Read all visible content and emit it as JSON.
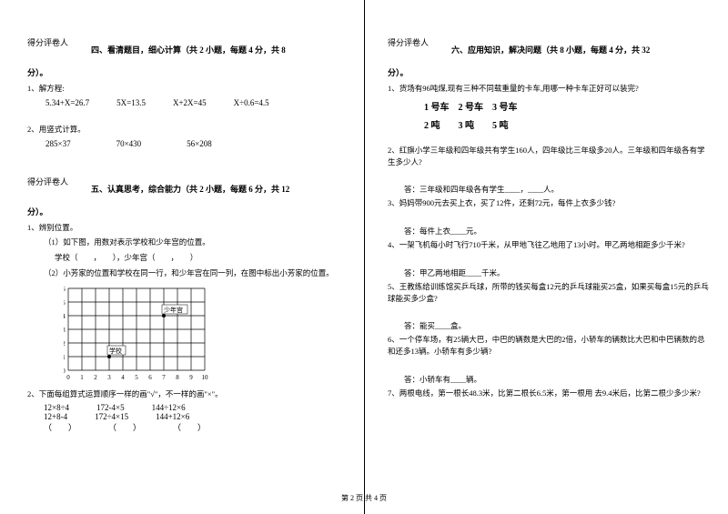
{
  "scoreBox": {
    "scoreLabel": "得分",
    "graderLabel": "评卷人"
  },
  "left": {
    "section4": {
      "title": "四、看清题目，细心计算（共 2 小题，每题 4 分，共 8",
      "pointsLine": "分）。",
      "q1": {
        "num": "1、解方程:",
        "eq1": "5.34+X=26.7",
        "eq2": "5X=13.5",
        "eq3": "X+2X=45",
        "eq4": "X÷0.6=4.5"
      },
      "q2": {
        "num": "2、用竖式计算。",
        "eq1": "285×37",
        "eq2": "70×430",
        "eq3": "56×208"
      }
    },
    "section5": {
      "title": "五、认真思考，综合能力（共 2 小题，每题 6 分，共 12",
      "pointsLine": "分）。",
      "q1": {
        "num": "1、辨别位置。",
        "line1": "（1）如下图，用数对表示学校和少年宫的位置。",
        "line2": "学校（　　，　　），少年宫（　　，　　）",
        "line3": "（2）小芳家的位置和学校在同一行，和少年宫在同一列，在图中标出小芳家的位置。"
      },
      "q2": {
        "num": "2、下面每组算式运算顺序一样的画\"√\"，不一样的画\"×\"。",
        "row1a": "12×8÷4",
        "row1b": "172-4×5",
        "row1c": "144÷12×6",
        "row2a": "12+8-4",
        "row2b": "172÷4×15",
        "row2c": "144+12×6",
        "row3a": "（　　）",
        "row3b": "（　　）",
        "row3c": "（　　）"
      }
    },
    "grid": {
      "cols": 10,
      "rows": 6,
      "cellSize": 15,
      "schoolLabel": "学校",
      "schoolCol": 3,
      "schoolRow": 1,
      "palaceLabel": "少年宫",
      "palaceCol": 7,
      "palaceRow": 4,
      "lineColor": "#000000",
      "fillColor": "#ffffff"
    }
  },
  "right": {
    "section6": {
      "title": "六、应用知识，解决问题（共 8 小题，每题 4 分，共 32",
      "pointsLine": "分）。",
      "q1": {
        "num": "1、货场有96吨煤,现有三种不同载重量的卡车,用哪一种卡车正好可以装完?",
        "trucks": "1 号车　2 号车　3 号车",
        "weights": "2 吨　　3 吨　　5 吨"
      },
      "q2": {
        "num": "2、红旗小学三年级和四年级共有学生160人，四年级比三年级多20人。三年级和四年级各有学生多少人?",
        "ans": "答：三年级和四年级各有学生____，____人。"
      },
      "q3": {
        "num": "3、妈妈带900元去买上衣，买了12件，还剩72元，每件上衣多少钱?",
        "ans": "答：每件上衣____元。"
      },
      "q4": {
        "num": "4、一架飞机每小时飞行710千米，从甲地飞往乙地用了13小时。甲乙两地相距多少千米?",
        "ans": "答：甲乙两地相距____千米。"
      },
      "q5": {
        "num": "5、王教练给训练馆买乒乓球，所带的钱买每盒12元的乒乓球能买25盒，如果买每盒15元的乒乓球能买多少盒?",
        "ans": "答：能买____盒。"
      },
      "q6": {
        "num": "6、一个停车场，有25辆大巴，中巴的辆数是大巴的2倍，小轿车的辆数比大巴和中巴辆数的总和还多13辆。小轿车有多少辆?",
        "ans": "答：小轿车有____辆。"
      },
      "q7": {
        "num": "7、两根电线，第一根长48.3米，比第二根长6.5米，第一根用  去9.4米后，比第二根少多少米?"
      }
    }
  },
  "footer": "第 2 页 共 4 页"
}
